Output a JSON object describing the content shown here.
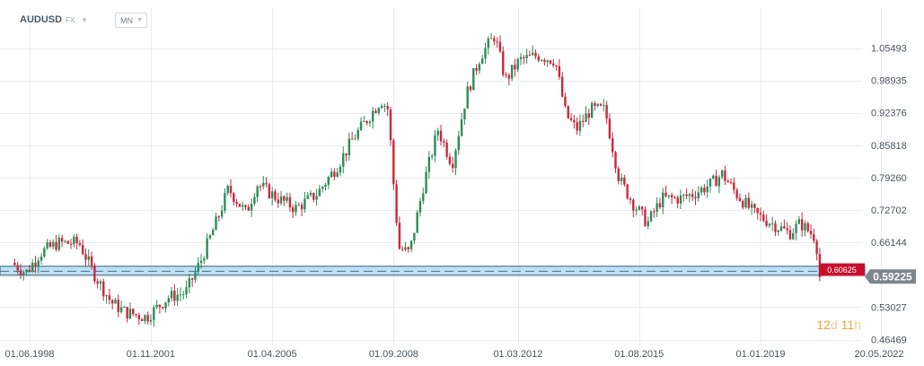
{
  "header": {
    "symbol": "AUDUSD",
    "market": "FX",
    "timeframe": "MN"
  },
  "countdown": {
    "days_value": "12",
    "days_unit": "d",
    "hours_value": "11",
    "hours_unit": "h"
  },
  "colors": {
    "up": "#2e8b57",
    "down": "#c8283c",
    "grid": "#e9ecef",
    "zone_fill": "#a7d7f2",
    "zone_border": "#3c5a78",
    "price_tag_red": "#c8102e",
    "price_tag_gray": "#7d858d"
  },
  "chart_data": {
    "type": "candlestick",
    "symbol": "AUDUSD",
    "timeframe": "MN",
    "y_ticks": [
      "1.05493",
      "0.98935",
      "0.92376",
      "0.85818",
      "0.79260",
      "0.72702",
      "0.66144",
      "0.59225",
      "0.53027",
      "0.46469"
    ],
    "y_tick_values": [
      1.05493,
      0.98935,
      0.92376,
      0.85818,
      0.7926,
      0.72702,
      0.66144,
      0.59225,
      0.53027,
      0.46469
    ],
    "ylim": [
      0.4647,
      1.1206
    ],
    "x_ticks": [
      "01.06.1998",
      "01.11.2001",
      "01.04.2005",
      "01.09.2008",
      "01.03.2012",
      "01.08.2015",
      "01.01.2019",
      "20.05.2022"
    ],
    "x_tick_times": [
      1998.42,
      2001.83,
      2005.25,
      2008.67,
      2012.17,
      2015.58,
      2019.0,
      2022.38
    ],
    "x_range": [
      1998.0,
      2022.6
    ],
    "support_zone": {
      "lower": 0.595,
      "upper": 0.613,
      "dashed_line": 0.603
    },
    "price_labels": [
      {
        "text": "0.60625",
        "value": 0.60625,
        "style": "red"
      },
      {
        "text": "0.59225",
        "value": 0.59225,
        "style": "gray"
      }
    ],
    "price_path": [
      [
        1998.0,
        0.62
      ],
      [
        1998.4,
        0.6
      ],
      [
        1998.8,
        0.64
      ],
      [
        1999.3,
        0.66
      ],
      [
        1999.9,
        0.66
      ],
      [
        2000.3,
        0.6
      ],
      [
        2000.8,
        0.54
      ],
      [
        2001.2,
        0.52
      ],
      [
        2001.8,
        0.51
      ],
      [
        2002.4,
        0.55
      ],
      [
        2002.9,
        0.56
      ],
      [
        2003.3,
        0.62
      ],
      [
        2003.8,
        0.71
      ],
      [
        2004.1,
        0.77
      ],
      [
        2004.6,
        0.72
      ],
      [
        2004.9,
        0.78
      ],
      [
        2005.5,
        0.75
      ],
      [
        2006.0,
        0.73
      ],
      [
        2006.6,
        0.76
      ],
      [
        2007.2,
        0.82
      ],
      [
        2007.6,
        0.87
      ],
      [
        2008.0,
        0.91
      ],
      [
        2008.4,
        0.95
      ],
      [
        2008.6,
        0.93
      ],
      [
        2008.75,
        0.78
      ],
      [
        2008.9,
        0.65
      ],
      [
        2009.2,
        0.64
      ],
      [
        2009.6,
        0.78
      ],
      [
        2010.0,
        0.89
      ],
      [
        2010.4,
        0.82
      ],
      [
        2010.8,
        0.96
      ],
      [
        2011.2,
        1.04
      ],
      [
        2011.6,
        1.08
      ],
      [
        2011.9,
        0.99
      ],
      [
        2012.3,
        1.03
      ],
      [
        2012.8,
        1.04
      ],
      [
        2013.3,
        1.03
      ],
      [
        2013.6,
        0.92
      ],
      [
        2013.9,
        0.89
      ],
      [
        2014.3,
        0.93
      ],
      [
        2014.7,
        0.93
      ],
      [
        2015.1,
        0.79
      ],
      [
        2015.5,
        0.74
      ],
      [
        2015.9,
        0.7
      ],
      [
        2016.3,
        0.75
      ],
      [
        2016.8,
        0.75
      ],
      [
        2017.2,
        0.76
      ],
      [
        2017.7,
        0.78
      ],
      [
        2018.0,
        0.8
      ],
      [
        2018.4,
        0.76
      ],
      [
        2018.9,
        0.72
      ],
      [
        2019.4,
        0.7
      ],
      [
        2019.9,
        0.68
      ],
      [
        2020.2,
        0.7
      ],
      [
        2020.5,
        0.68
      ],
      [
        2020.65,
        0.67
      ],
      [
        2020.72,
        0.592
      ]
    ]
  }
}
